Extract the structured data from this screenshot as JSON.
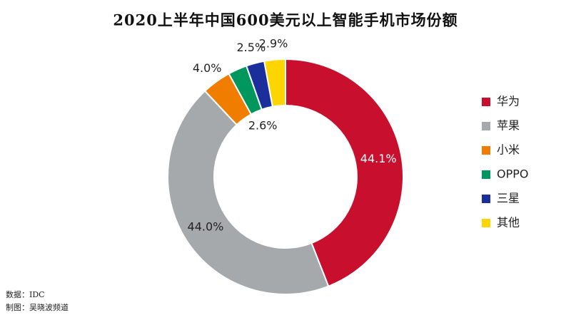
{
  "chart_data": {
    "type": "donut",
    "title": "2020上半年中国600美元以上智能手机市场份额",
    "categories": [
      "华为",
      "苹果",
      "小米",
      "OPPO",
      "三星",
      "其他"
    ],
    "values": [
      44.1,
      44.0,
      4.0,
      2.6,
      2.5,
      2.9
    ],
    "value_labels": [
      "44.1%",
      "44.0%",
      "4.0%",
      "2.6%",
      "2.5%",
      "2.9%"
    ],
    "colors": [
      "#c8102e",
      "#a5a9ab",
      "#f07d00",
      "#00975f",
      "#1a2f9c",
      "#ffd500"
    ],
    "legend": "right",
    "source": "数据：IDC",
    "credit": "制图：吴晓波频道"
  }
}
